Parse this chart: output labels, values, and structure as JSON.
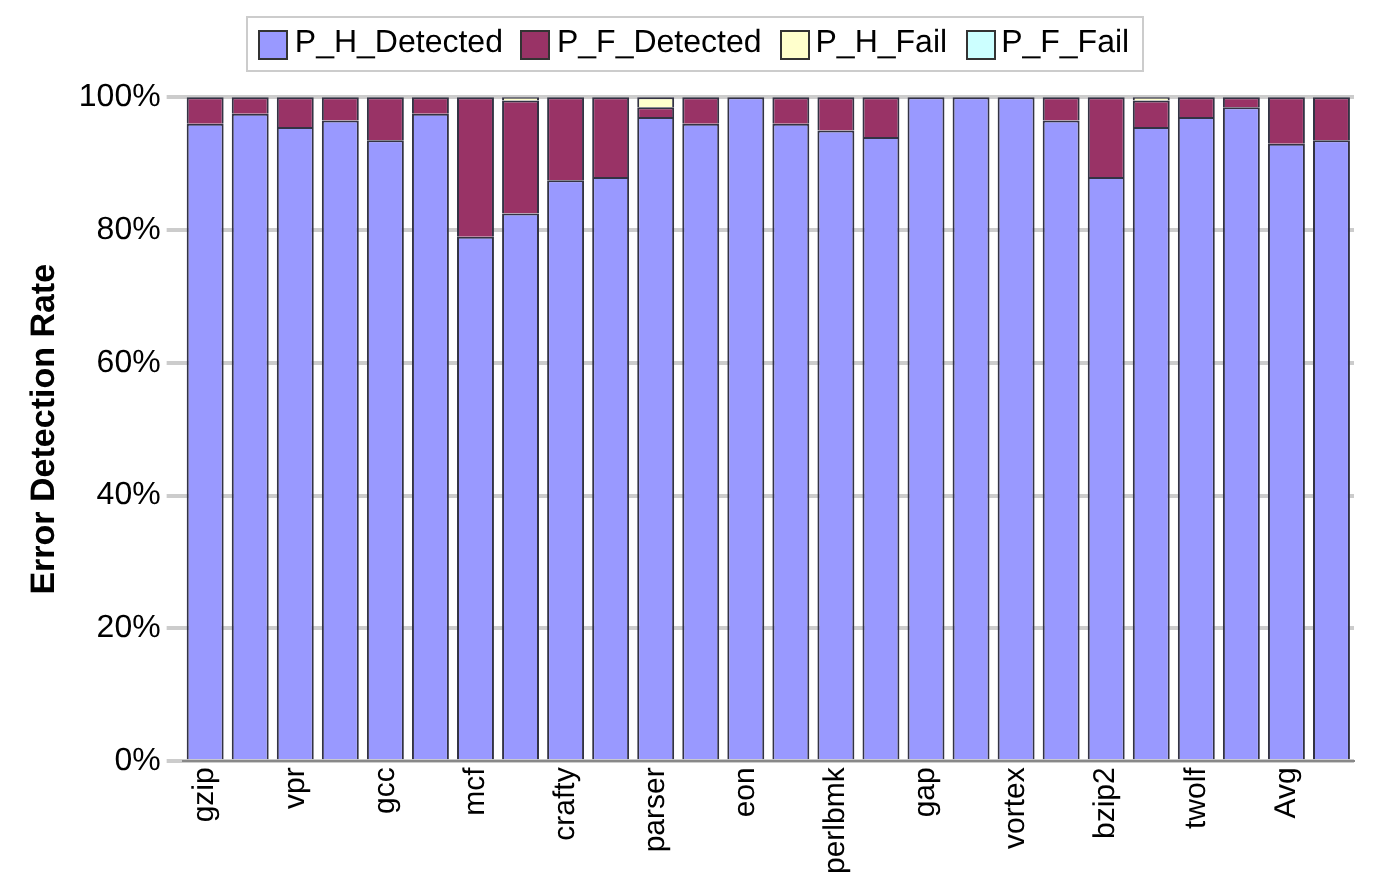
{
  "chart_data": {
    "type": "bar",
    "stacked": true,
    "ylabel": "Error Detection Rate",
    "categories": [
      "gzip",
      null,
      "vpr",
      null,
      "gcc",
      null,
      "mcf",
      null,
      "crafty",
      null,
      "parser",
      null,
      "eon",
      null,
      "perlbmk",
      null,
      "gap",
      null,
      "vortex",
      null,
      "bzip2",
      null,
      "twolf",
      null,
      "Avg",
      null
    ],
    "series": [
      {
        "name": "P_H_Detected",
        "color": "#9999ff",
        "values": [
          96,
          97.5,
          95.5,
          96.5,
          93.5,
          97.5,
          79,
          82.5,
          87.5,
          88,
          97,
          96,
          100,
          96,
          95,
          94,
          100,
          100,
          100,
          96.5,
          88,
          95.5,
          97,
          98.5,
          93,
          93.5
        ]
      },
      {
        "name": "P_F_Detected",
        "color": "#993366",
        "values": [
          4,
          2.5,
          4.5,
          3.5,
          6.5,
          2.5,
          21,
          17,
          12.5,
          12,
          1.5,
          4,
          0,
          4,
          5,
          6,
          0,
          0,
          0,
          3.5,
          12,
          4,
          3,
          1.5,
          7,
          6.5
        ]
      },
      {
        "name": "P_H_Fail",
        "color": "#ffffcc",
        "values": [
          0,
          0,
          0,
          0,
          0,
          0,
          0,
          0.5,
          0,
          0,
          1.5,
          0,
          0,
          0,
          0,
          0,
          0,
          0,
          0,
          0,
          0,
          0.5,
          0,
          0,
          0,
          0
        ]
      },
      {
        "name": "P_F_Fail",
        "color": "#ccffff",
        "values": [
          0,
          0,
          0,
          0,
          0,
          0,
          0,
          0,
          0,
          0,
          0,
          0,
          0,
          0,
          0,
          0,
          0,
          0,
          0,
          0,
          0,
          0,
          0,
          0,
          0,
          0
        ]
      }
    ],
    "ylim": [
      0,
      100
    ],
    "yticks": [
      {
        "value": 0,
        "label": "0%"
      },
      {
        "value": 20,
        "label": "20%"
      },
      {
        "value": 40,
        "label": "40%"
      },
      {
        "value": 60,
        "label": "60%"
      },
      {
        "value": 80,
        "label": "80%"
      },
      {
        "value": 100,
        "label": "100%"
      }
    ],
    "grid": "y",
    "legend": "top"
  }
}
